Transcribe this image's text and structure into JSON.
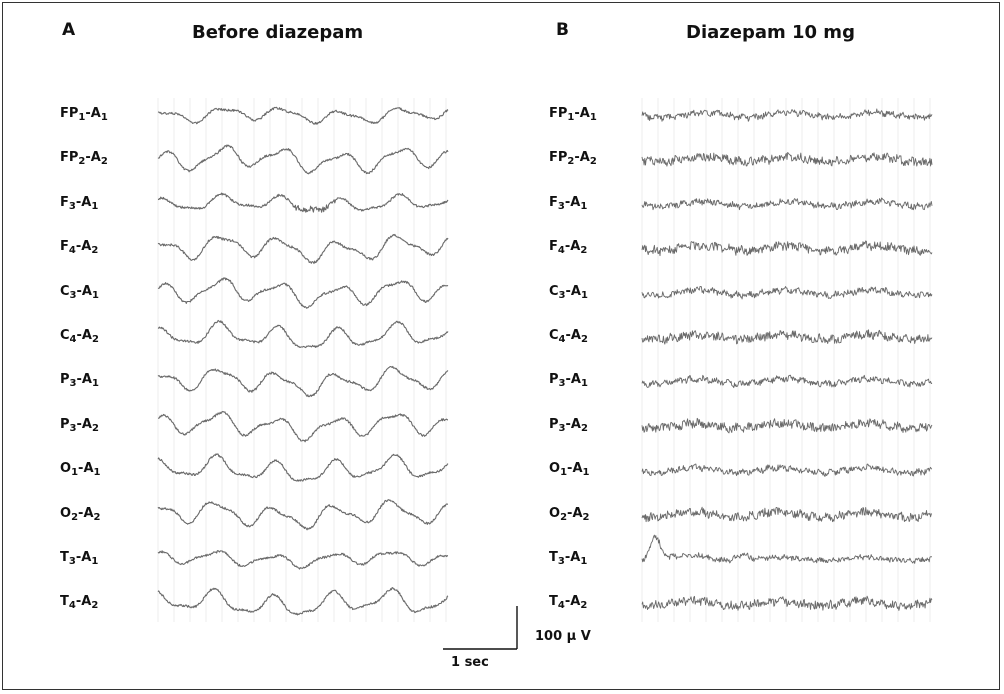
{
  "panels": [
    {
      "letter": "A",
      "title": "Before diazepam",
      "pattern": "slow",
      "leads": [
        {
          "a": "FP",
          "as": "1",
          "b": "A",
          "bs": "1"
        },
        {
          "a": "FP",
          "as": "2",
          "b": "A",
          "bs": "2"
        },
        {
          "a": "F",
          "as": "3",
          "b": "A",
          "bs": "1"
        },
        {
          "a": "F",
          "as": "4",
          "b": "A",
          "bs": "2"
        },
        {
          "a": "C",
          "as": "3",
          "b": "A",
          "bs": "1"
        },
        {
          "a": "C",
          "as": "4",
          "b": "A",
          "bs": "2"
        },
        {
          "a": "P",
          "as": "3",
          "b": "A",
          "bs": "1"
        },
        {
          "a": "P",
          "as": "3",
          "b": "A",
          "bs": "2"
        },
        {
          "a": "O",
          "as": "1",
          "b": "A",
          "bs": "1"
        },
        {
          "a": "O",
          "as": "2",
          "b": "A",
          "bs": "2"
        },
        {
          "a": "T",
          "as": "3",
          "b": "A",
          "bs": "1"
        },
        {
          "a": "T",
          "as": "4",
          "b": "A",
          "bs": "2"
        }
      ]
    },
    {
      "letter": "B",
      "title": "Diazepam 10 mg",
      "pattern": "fast",
      "leads": [
        {
          "a": "FP",
          "as": "1",
          "b": "A",
          "bs": "1"
        },
        {
          "a": "FP",
          "as": "2",
          "b": "A",
          "bs": "2"
        },
        {
          "a": "F",
          "as": "3",
          "b": "A",
          "bs": "1"
        },
        {
          "a": "F",
          "as": "4",
          "b": "A",
          "bs": "2"
        },
        {
          "a": "C",
          "as": "3",
          "b": "A",
          "bs": "1"
        },
        {
          "a": "C",
          "as": "4",
          "b": "A",
          "bs": "2"
        },
        {
          "a": "P",
          "as": "3",
          "b": "A",
          "bs": "1"
        },
        {
          "a": "P",
          "as": "3",
          "b": "A",
          "bs": "2"
        },
        {
          "a": "O",
          "as": "1",
          "b": "A",
          "bs": "1"
        },
        {
          "a": "O",
          "as": "2",
          "b": "A",
          "bs": "2"
        },
        {
          "a": "T",
          "as": "3",
          "b": "A",
          "bs": "1"
        },
        {
          "a": "T",
          "as": "4",
          "b": "A",
          "bs": "2"
        }
      ]
    }
  ],
  "scale": {
    "time_label": "1 sec",
    "amplitude_label": "100 μ V"
  },
  "colors": {
    "trace": "#6a6a6a",
    "grid": "#e4e4e4",
    "text": "#111111"
  }
}
